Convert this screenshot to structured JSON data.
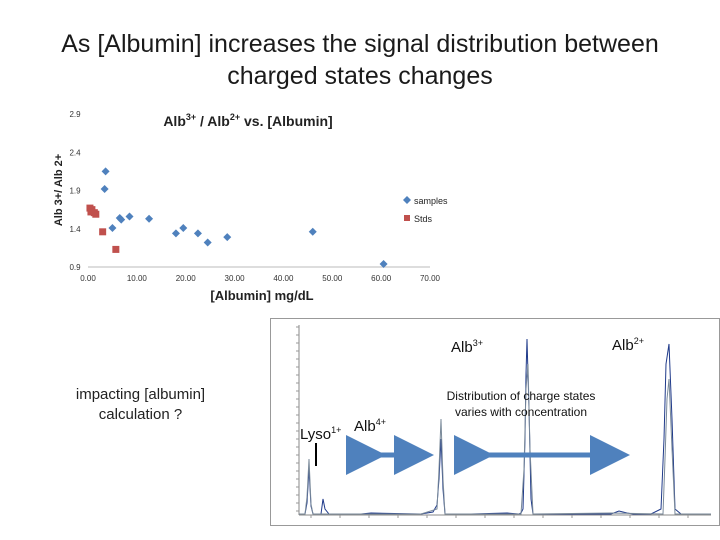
{
  "title": {
    "line1": "As [Albumin] increases the signal distribution between",
    "line2": "charged states changes"
  },
  "chart_data": [
    {
      "type": "scatter",
      "title_base": "Alb",
      "title_sup1": "3+",
      "title_mid": " / Alb",
      "title_sup2": "2+",
      "title_tail": " vs. [Albumin]",
      "xlabel": "[Albumin] mg/dL",
      "ylabel": "Alb 3+/ Alb 2+",
      "xlim": [
        0,
        70
      ],
      "ylim": [
        0.9,
        2.9
      ],
      "xticks": [
        "0.00",
        "10.00",
        "20.00",
        "30.00",
        "40.00",
        "50.00",
        "60.00",
        "70.00"
      ],
      "yticks": [
        "0.9",
        "1.4",
        "1.9",
        "2.4",
        "2.9"
      ],
      "legend_position": "right",
      "series": [
        {
          "name": "samples",
          "color": "#4F81BD",
          "marker": "diamond",
          "points": [
            [
              3.6,
              2.15
            ],
            [
              3.4,
              1.92
            ],
            [
              5.0,
              1.41
            ],
            [
              6.5,
              1.54
            ],
            [
              6.8,
              1.52
            ],
            [
              8.5,
              1.56
            ],
            [
              12.5,
              1.53
            ],
            [
              18.0,
              1.34
            ],
            [
              19.5,
              1.41
            ],
            [
              22.5,
              1.34
            ],
            [
              24.5,
              1.22
            ],
            [
              28.5,
              1.29
            ],
            [
              46.0,
              1.36
            ],
            [
              60.5,
              0.94
            ]
          ]
        },
        {
          "name": "Stds",
          "color": "#C0504D",
          "marker": "square",
          "points": [
            [
              0.4,
              1.67
            ],
            [
              0.6,
              1.62
            ],
            [
              0.8,
              1.65
            ],
            [
              1.3,
              1.61
            ],
            [
              1.6,
              1.59
            ],
            [
              3.0,
              1.36
            ],
            [
              5.7,
              1.13
            ]
          ]
        }
      ]
    }
  ],
  "spectrum": {
    "label_alb3_base": "Alb",
    "label_alb3_sup": "3+",
    "label_alb2_base": "Alb",
    "label_alb2_sup": "2+",
    "label_alb4_base": "Alb",
    "label_alb4_sup": "4+",
    "label_lyso_base": "Lyso",
    "label_lyso_sup": "1+",
    "distribution_note": "Distribution of charge states varies with concentration",
    "arrow_color": "#4F81BD"
  },
  "note": "impacting [albumin] calculation ?"
}
